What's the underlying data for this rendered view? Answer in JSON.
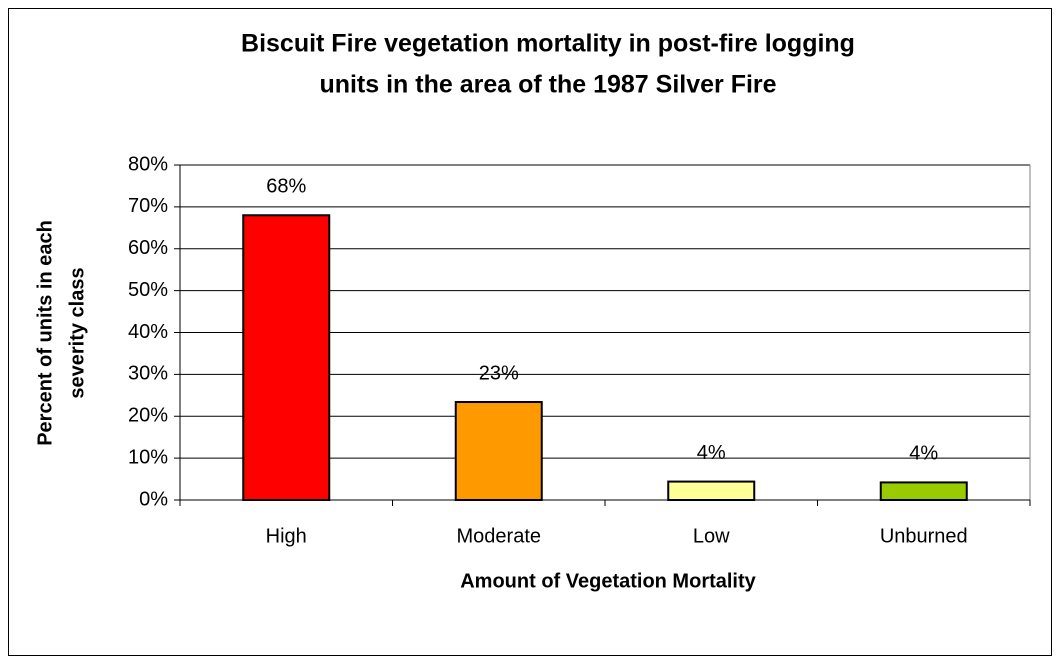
{
  "chart_data": {
    "type": "bar",
    "title": [
      "Biscuit Fire vegetation mortality in post-fire logging",
      "units in the area of the 1987 Silver Fire"
    ],
    "x_label": "Amount of Vegetation Mortality",
    "y_label": [
      "Percent of units in each",
      "severity class"
    ],
    "categories": [
      "High",
      "Moderate",
      "Low",
      "Unburned"
    ],
    "values": [
      68,
      23.4,
      4.4,
      4.2
    ],
    "value_labels": [
      "68%",
      "23%",
      "4%",
      "4%"
    ],
    "colors": [
      "#ff0000",
      "#ff9900",
      "#ffff99",
      "#99cc00"
    ],
    "ylim": [
      0,
      80
    ],
    "yticks": [
      {
        "value": 0,
        "label": "0%"
      },
      {
        "value": 10,
        "label": "10%"
      },
      {
        "value": 20,
        "label": "20%"
      },
      {
        "value": 30,
        "label": "30%"
      },
      {
        "value": 40,
        "label": "40%"
      },
      {
        "value": 50,
        "label": "50%"
      },
      {
        "value": 60,
        "label": "60%"
      },
      {
        "value": 70,
        "label": "70%"
      },
      {
        "value": 80,
        "label": "80%"
      }
    ],
    "grid": true
  }
}
